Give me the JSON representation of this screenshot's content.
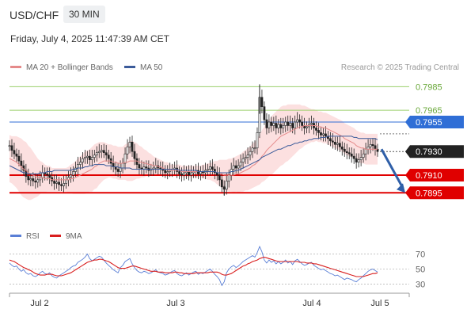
{
  "header": {
    "symbol": "USD/CHF",
    "interval": "30 MIN",
    "datetime": "Friday, July 4, 2025 11:47:39 AM CET",
    "credit": "Research © 2025 Trading Central"
  },
  "colors": {
    "candle": "#222222",
    "bollinger_fill": "#fbd5d5",
    "ma20": "#e58a8a",
    "ma50": "#3b5b9a",
    "resistance_green": "#9bcf6b",
    "blue_level": "#2f6ed6",
    "red_level": "#e00000",
    "last_price": "#222222",
    "rsi": "#5a7fd6",
    "rsi_ma": "#d91f1f",
    "forecast_arrow": "#2f5fa8"
  },
  "chart_data": [
    {
      "type": "line",
      "name": "price",
      "legend": [
        {
          "label": "MA 20 + Bollinger Bands",
          "color": "#e58a8a"
        },
        {
          "label": "MA 50",
          "color": "#3b5b9a"
        }
      ],
      "x_ticks": [
        "Jul 2",
        "Jul 3",
        "Jul 4",
        "Jul 5"
      ],
      "ylim": [
        0.7873,
        0.7994
      ],
      "levels": [
        {
          "value": 0.7985,
          "label": "0.7985",
          "style": "green-line"
        },
        {
          "value": 0.7965,
          "label": "0.7965",
          "style": "green-line"
        },
        {
          "value": 0.7955,
          "label": "0.7955",
          "style": "blue-box"
        },
        {
          "value": 0.793,
          "label": "0.7930",
          "style": "last-price"
        },
        {
          "value": 0.791,
          "label": "0.7910",
          "style": "red-box"
        },
        {
          "value": 0.7895,
          "label": "0.7895",
          "style": "red-box"
        }
      ],
      "close": [
        0.7935,
        0.7931,
        0.7928,
        0.7926,
        0.7922,
        0.7918,
        0.7914,
        0.7909,
        0.7906,
        0.7907,
        0.7905,
        0.7904,
        0.7906,
        0.7908,
        0.7912,
        0.7911,
        0.791,
        0.7908,
        0.7905,
        0.7903,
        0.7904,
        0.7902,
        0.7901,
        0.7903,
        0.7906,
        0.7908,
        0.791,
        0.7913,
        0.7916,
        0.7919,
        0.7921,
        0.7924,
        0.7925,
        0.7926,
        0.7923,
        0.7925,
        0.7927,
        0.7929,
        0.793,
        0.7931,
        0.7929,
        0.7927,
        0.7924,
        0.792,
        0.7917,
        0.7915,
        0.7913,
        0.7916,
        0.792,
        0.7928,
        0.7934,
        0.7938,
        0.793,
        0.7924,
        0.7919,
        0.7916,
        0.7915,
        0.7917,
        0.7916,
        0.7914,
        0.7915,
        0.7916,
        0.7918,
        0.7916,
        0.7915,
        0.7914,
        0.7912,
        0.7913,
        0.7914,
        0.7915,
        0.7916,
        0.7913,
        0.7911,
        0.791,
        0.7912,
        0.7913,
        0.791,
        0.7912,
        0.7913,
        0.7914,
        0.7911,
        0.7913,
        0.7912,
        0.7914,
        0.7915,
        0.7917,
        0.7915,
        0.7912,
        0.791,
        0.7906,
        0.79,
        0.7898,
        0.7905,
        0.791,
        0.7915,
        0.7918,
        0.7916,
        0.7918,
        0.7921,
        0.7924,
        0.7925,
        0.7927,
        0.793,
        0.7933,
        0.7933,
        0.7946,
        0.7976,
        0.7968,
        0.7957,
        0.795,
        0.7955,
        0.7952,
        0.7954,
        0.795,
        0.7953,
        0.795,
        0.7952,
        0.7955,
        0.7952,
        0.7954,
        0.795,
        0.7955,
        0.7957,
        0.7955,
        0.7952,
        0.795,
        0.7951,
        0.7953,
        0.7954,
        0.795,
        0.7948,
        0.7946,
        0.7944,
        0.7945,
        0.7943,
        0.7941,
        0.7939,
        0.7938,
        0.7936,
        0.7937,
        0.7934,
        0.7932,
        0.793,
        0.7929,
        0.7928,
        0.7926,
        0.7924,
        0.7921,
        0.7923,
        0.7925,
        0.7928,
        0.7932,
        0.7934,
        0.7936,
        0.7935,
        0.7932,
        0.793
      ],
      "ma50": [
        0.7918,
        0.7917,
        0.7916,
        0.7915,
        0.7914,
        0.7913,
        0.7912,
        0.7912,
        0.7911,
        0.7911,
        0.7911,
        0.7911,
        0.7911,
        0.7912,
        0.7912,
        0.7912,
        0.7913,
        0.7913,
        0.7913,
        0.7914,
        0.7914,
        0.7914,
        0.7914,
        0.7914,
        0.7914,
        0.7914,
        0.7914,
        0.7915,
        0.7915,
        0.7916,
        0.7916,
        0.7916,
        0.7917,
        0.7917,
        0.7918,
        0.7918,
        0.7919,
        0.7919,
        0.7919,
        0.7919,
        0.7919,
        0.7918,
        0.7918,
        0.7918,
        0.7917,
        0.7917,
        0.7917,
        0.7916,
        0.7916,
        0.7916,
        0.7916,
        0.7916,
        0.7915,
        0.7915,
        0.7915,
        0.7915,
        0.7915,
        0.7915,
        0.7915,
        0.7915,
        0.7915,
        0.7915,
        0.7915,
        0.7915,
        0.7915,
        0.7915,
        0.7915,
        0.7915,
        0.7915,
        0.7915,
        0.7915,
        0.7915,
        0.7914,
        0.7914,
        0.7914,
        0.7914,
        0.7914,
        0.7914,
        0.7914,
        0.7914,
        0.7913,
        0.7913,
        0.7913,
        0.7913,
        0.7913,
        0.7913,
        0.7913,
        0.7913,
        0.7912,
        0.7912,
        0.7912,
        0.7912,
        0.7912,
        0.7912,
        0.7913,
        0.7913,
        0.7914,
        0.7914,
        0.7915,
        0.7916,
        0.7917,
        0.7918,
        0.7919,
        0.792,
        0.7921,
        0.7922,
        0.7923,
        0.7925,
        0.7926,
        0.7927,
        0.7928,
        0.7929,
        0.793,
        0.7931,
        0.7932,
        0.7932,
        0.7933,
        0.7934,
        0.7935,
        0.7935,
        0.7936,
        0.7937,
        0.7937,
        0.7938,
        0.7938,
        0.7939,
        0.7939,
        0.794,
        0.794,
        0.7941,
        0.7941,
        0.7941,
        0.7942,
        0.7942,
        0.7942,
        0.7943,
        0.7943,
        0.7943,
        0.7943,
        0.7943,
        0.7943,
        0.7943,
        0.7943,
        0.7943,
        0.7943,
        0.7943,
        0.7942,
        0.7942,
        0.7941,
        0.7941,
        0.7941,
        0.7941,
        0.7941,
        0.7941,
        0.7941,
        0.7941,
        0.794
      ],
      "ma20": [
        0.7924,
        0.7923,
        0.7922,
        0.7921,
        0.7919,
        0.7917,
        0.7915,
        0.7914,
        0.7912,
        0.7911,
        0.791,
        0.7909,
        0.7908,
        0.7908,
        0.7908,
        0.7907,
        0.7907,
        0.7907,
        0.7906,
        0.7906,
        0.7906,
        0.7906,
        0.7906,
        0.7906,
        0.7906,
        0.7906,
        0.7907,
        0.7907,
        0.7908,
        0.7909,
        0.791,
        0.7911,
        0.7912,
        0.7913,
        0.7914,
        0.7915,
        0.7917,
        0.7918,
        0.792,
        0.7921,
        0.7922,
        0.7922,
        0.7922,
        0.7922,
        0.7921,
        0.7921,
        0.792,
        0.792,
        0.792,
        0.7921,
        0.7921,
        0.7922,
        0.7922,
        0.7922,
        0.7922,
        0.7921,
        0.7921,
        0.792,
        0.792,
        0.7919,
        0.7919,
        0.7918,
        0.7918,
        0.7917,
        0.7917,
        0.7916,
        0.7915,
        0.7915,
        0.7914,
        0.7914,
        0.7914,
        0.7914,
        0.7914,
        0.7913,
        0.7913,
        0.7913,
        0.7913,
        0.7913,
        0.7913,
        0.7913,
        0.7913,
        0.7913,
        0.7913,
        0.7913,
        0.7913,
        0.7913,
        0.7913,
        0.7913,
        0.7912,
        0.7912,
        0.7911,
        0.791,
        0.791,
        0.791,
        0.791,
        0.791,
        0.7911,
        0.7911,
        0.7912,
        0.7913,
        0.7914,
        0.7915,
        0.7916,
        0.7918,
        0.7919,
        0.7921,
        0.7923,
        0.7926,
        0.7928,
        0.7931,
        0.7933,
        0.7935,
        0.7937,
        0.7939,
        0.7941,
        0.7943,
        0.7944,
        0.7945,
        0.7946,
        0.7947,
        0.7948,
        0.7949,
        0.795,
        0.7951,
        0.7951,
        0.7952,
        0.7952,
        0.7952,
        0.7952,
        0.7952,
        0.7952,
        0.7951,
        0.7951,
        0.795,
        0.795,
        0.7949,
        0.7948,
        0.7947,
        0.7946,
        0.7945,
        0.7944,
        0.7943,
        0.7941,
        0.794,
        0.7939,
        0.7938,
        0.7937,
        0.7935,
        0.7934,
        0.7933,
        0.7933,
        0.7932,
        0.7932,
        0.7932,
        0.7932,
        0.7932,
        0.7932
      ],
      "bb_width": [
        0.002,
        0.002,
        0.0021,
        0.0022,
        0.0023,
        0.0024,
        0.0024,
        0.0024,
        0.0023,
        0.0022,
        0.002,
        0.0018,
        0.0016,
        0.0014,
        0.0013,
        0.0012,
        0.0011,
        0.0011,
        0.001,
        0.001,
        0.001,
        0.001,
        0.001,
        0.001,
        0.001,
        0.0011,
        0.0012,
        0.0013,
        0.0014,
        0.0015,
        0.0016,
        0.0017,
        0.0018,
        0.0018,
        0.0018,
        0.0019,
        0.0019,
        0.0019,
        0.0018,
        0.0017,
        0.0016,
        0.0015,
        0.0014,
        0.0014,
        0.0014,
        0.0014,
        0.0014,
        0.0014,
        0.0014,
        0.0015,
        0.0016,
        0.0017,
        0.0017,
        0.0016,
        0.0015,
        0.0014,
        0.0013,
        0.0012,
        0.0011,
        0.001,
        0.0009,
        0.0008,
        0.0007,
        0.0007,
        0.0006,
        0.0006,
        0.0006,
        0.0006,
        0.0005,
        0.0005,
        0.0005,
        0.0005,
        0.0005,
        0.0005,
        0.0005,
        0.0005,
        0.0005,
        0.0005,
        0.0005,
        0.0005,
        0.0005,
        0.0005,
        0.0006,
        0.0006,
        0.0007,
        0.0007,
        0.0008,
        0.0009,
        0.001,
        0.0011,
        0.0012,
        0.0013,
        0.0013,
        0.0014,
        0.0014,
        0.0015,
        0.0015,
        0.0016,
        0.0016,
        0.0017,
        0.0017,
        0.0018,
        0.0018,
        0.0019,
        0.0019,
        0.002,
        0.0021,
        0.0022,
        0.0023,
        0.0024,
        0.0024,
        0.0025,
        0.0025,
        0.0025,
        0.0025,
        0.0025,
        0.0025,
        0.0024,
        0.0024,
        0.0023,
        0.0022,
        0.0021,
        0.002,
        0.0019,
        0.0018,
        0.0017,
        0.0016,
        0.0015,
        0.0014,
        0.0014,
        0.0013,
        0.0013,
        0.0013,
        0.0013,
        0.0013,
        0.0013,
        0.0013,
        0.0013,
        0.0013,
        0.0013,
        0.0013,
        0.0013,
        0.0013,
        0.0013,
        0.0013,
        0.0013,
        0.0013,
        0.0013,
        0.0013,
        0.0013,
        0.0013,
        0.0013,
        0.0013,
        0.0013,
        0.0013,
        0.0013,
        0.0013
      ],
      "forecast": {
        "from": 0.7932,
        "to": 0.7895,
        "direction": "down"
      }
    },
    {
      "type": "line",
      "name": "rsi",
      "legend": [
        {
          "label": "RSI",
          "color": "#5a7fd6"
        },
        {
          "label": "9MA",
          "color": "#d91f1f"
        }
      ],
      "ylim": [
        22,
        78
      ],
      "y_ticks": [
        70,
        50,
        30
      ],
      "rsi": [
        58,
        55,
        53,
        54,
        50,
        47,
        49,
        45,
        43,
        44,
        41,
        40,
        42,
        45,
        47,
        44,
        43,
        45,
        41,
        39,
        38,
        41,
        43,
        45,
        47,
        49,
        52,
        54,
        55,
        59,
        61,
        63,
        66,
        70,
        64,
        61,
        63,
        65,
        67,
        66,
        62,
        58,
        55,
        52,
        49,
        47,
        45,
        52,
        55,
        60,
        62,
        64,
        57,
        52,
        48,
        46,
        45,
        47,
        46,
        44,
        45,
        47,
        49,
        46,
        45,
        44,
        42,
        43,
        45,
        47,
        48,
        44,
        42,
        41,
        43,
        45,
        42,
        44,
        46,
        47,
        43,
        45,
        44,
        46,
        48,
        50,
        47,
        43,
        40,
        36,
        28,
        33,
        45,
        50,
        53,
        55,
        52,
        54,
        57,
        60,
        62,
        64,
        66,
        68,
        66,
        72,
        80,
        73,
        62,
        58,
        62,
        59,
        61,
        57,
        60,
        57,
        59,
        62,
        58,
        60,
        56,
        61,
        63,
        60,
        57,
        55,
        56,
        58,
        59,
        55,
        53,
        51,
        49,
        50,
        48,
        46,
        44,
        43,
        41,
        42,
        40,
        38,
        36,
        38,
        37,
        36,
        34,
        33,
        36,
        38,
        41,
        44,
        47,
        49,
        50,
        48,
        46
      ],
      "rsi_ma": [
        62,
        61,
        60,
        58,
        56,
        54,
        52,
        51,
        49,
        48,
        46,
        44,
        43,
        42,
        42,
        42,
        43,
        43,
        43,
        42,
        41,
        41,
        41,
        42,
        43,
        44,
        45,
        47,
        49,
        51,
        53,
        55,
        57,
        59,
        60,
        61,
        62,
        62,
        63,
        63,
        62,
        61,
        60,
        58,
        56,
        54,
        52,
        51,
        51,
        51,
        52,
        53,
        54,
        54,
        53,
        52,
        51,
        50,
        49,
        48,
        47,
        47,
        47,
        46,
        46,
        46,
        45,
        45,
        45,
        45,
        46,
        46,
        45,
        45,
        44,
        44,
        44,
        44,
        44,
        45,
        45,
        45,
        45,
        45,
        45,
        46,
        46,
        46,
        46,
        45,
        43,
        42,
        42,
        43,
        44,
        46,
        48,
        50,
        52,
        54,
        55,
        57,
        58,
        60,
        61,
        62,
        64,
        65,
        66,
        65,
        64,
        63,
        62,
        61,
        60,
        60,
        60,
        60,
        60,
        60,
        60,
        60,
        60,
        59,
        59,
        59,
        58,
        58,
        58,
        57,
        57,
        56,
        55,
        54,
        53,
        52,
        51,
        50,
        49,
        48,
        47,
        46,
        45,
        44,
        43,
        42,
        41,
        40,
        40,
        40,
        40,
        41,
        42,
        43,
        44,
        44,
        45
      ]
    }
  ]
}
